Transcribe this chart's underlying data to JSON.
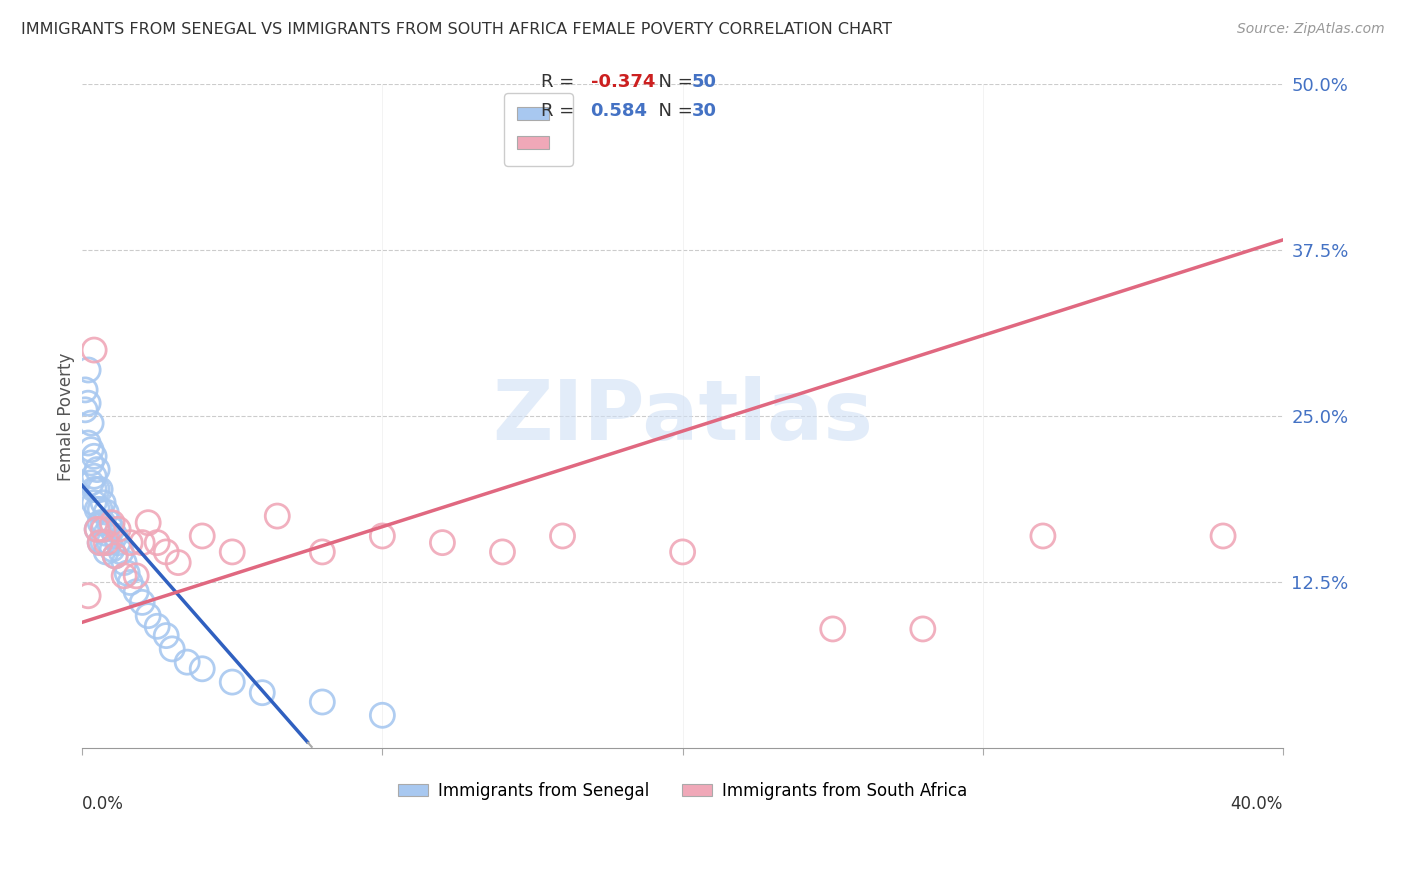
{
  "title": "IMMIGRANTS FROM SENEGAL VS IMMIGRANTS FROM SOUTH AFRICA FEMALE POVERTY CORRELATION CHART",
  "source": "Source: ZipAtlas.com",
  "ylabel": "Female Poverty",
  "xlim": [
    0.0,
    0.4
  ],
  "ylim": [
    0.0,
    0.5
  ],
  "senegal_color": "#a8c8f0",
  "south_africa_color": "#f0a8b8",
  "senegal_line_color": "#3060c0",
  "south_africa_line_color": "#e06880",
  "senegal_R": -0.374,
  "senegal_N": 50,
  "south_africa_R": 0.584,
  "south_africa_N": 30,
  "legend_label_senegal": "Immigrants from Senegal",
  "legend_label_south_africa": "Immigrants from South Africa",
  "watermark": "ZIPatlas",
  "senegal_x": [
    0.001,
    0.001,
    0.002,
    0.002,
    0.002,
    0.003,
    0.003,
    0.003,
    0.003,
    0.004,
    0.004,
    0.004,
    0.004,
    0.005,
    0.005,
    0.005,
    0.005,
    0.006,
    0.006,
    0.006,
    0.006,
    0.007,
    0.007,
    0.007,
    0.008,
    0.008,
    0.008,
    0.009,
    0.009,
    0.01,
    0.01,
    0.011,
    0.011,
    0.012,
    0.013,
    0.014,
    0.015,
    0.016,
    0.018,
    0.02,
    0.022,
    0.025,
    0.028,
    0.03,
    0.035,
    0.04,
    0.05,
    0.06,
    0.08,
    0.1
  ],
  "senegal_y": [
    0.27,
    0.255,
    0.285,
    0.26,
    0.23,
    0.245,
    0.225,
    0.215,
    0.2,
    0.22,
    0.205,
    0.195,
    0.185,
    0.21,
    0.195,
    0.18,
    0.165,
    0.195,
    0.18,
    0.17,
    0.155,
    0.185,
    0.17,
    0.155,
    0.178,
    0.162,
    0.148,
    0.17,
    0.155,
    0.165,
    0.15,
    0.16,
    0.145,
    0.155,
    0.148,
    0.14,
    0.132,
    0.125,
    0.118,
    0.11,
    0.1,
    0.092,
    0.085,
    0.075,
    0.065,
    0.06,
    0.05,
    0.042,
    0.035,
    0.025
  ],
  "south_africa_x": [
    0.002,
    0.004,
    0.005,
    0.006,
    0.007,
    0.008,
    0.01,
    0.011,
    0.012,
    0.014,
    0.016,
    0.018,
    0.02,
    0.022,
    0.025,
    0.028,
    0.032,
    0.04,
    0.05,
    0.065,
    0.08,
    0.1,
    0.12,
    0.14,
    0.16,
    0.2,
    0.25,
    0.28,
    0.32,
    0.38
  ],
  "south_africa_y": [
    0.115,
    0.3,
    0.165,
    0.155,
    0.165,
    0.155,
    0.17,
    0.145,
    0.165,
    0.13,
    0.155,
    0.13,
    0.155,
    0.17,
    0.155,
    0.148,
    0.14,
    0.16,
    0.148,
    0.175,
    0.148,
    0.16,
    0.155,
    0.148,
    0.16,
    0.148,
    0.09,
    0.09,
    0.16,
    0.16
  ],
  "senegal_line_x_solid_end": 0.075,
  "sa_line_intercept": 0.095,
  "sa_line_slope": 0.72
}
